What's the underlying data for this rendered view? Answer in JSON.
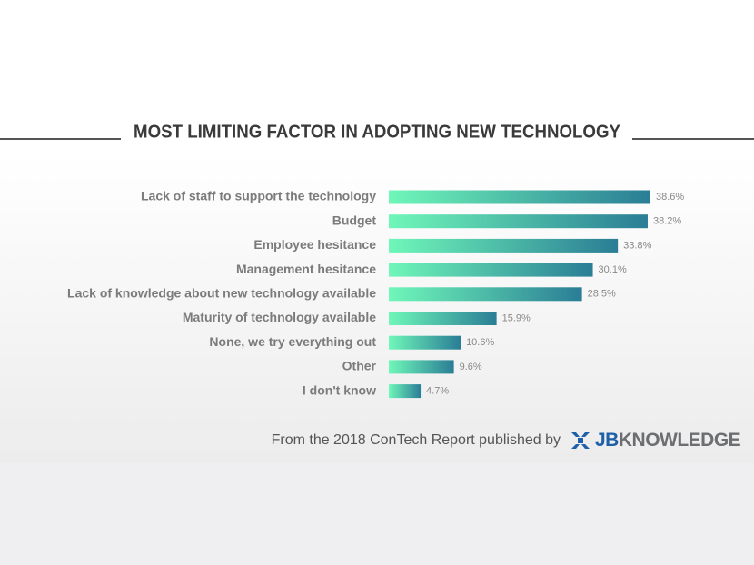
{
  "chart_data": {
    "type": "bar",
    "orientation": "horizontal",
    "title": "MOST LIMITING FACTOR IN ADOPTING NEW TECHNOLOGY",
    "categories": [
      "Lack of staff to support the technology",
      "Budget",
      "Employee hesitance",
      "Management hesitance",
      "Lack of knowledge about new technology available",
      "Maturity of technology available",
      "None, we try everything out",
      "Other",
      "I don't know"
    ],
    "values": [
      38.6,
      38.2,
      33.8,
      30.1,
      28.5,
      15.9,
      10.6,
      9.6,
      4.7
    ],
    "value_labels": [
      "38.6%",
      "38.2%",
      "33.8%",
      "30.1%",
      "28.5%",
      "15.9%",
      "10.6%",
      "9.6%",
      "4.7%"
    ],
    "colors": [
      "#6ff7b9",
      "#2a7d95"
    ],
    "source": "From the 2018 ConTech Report published by",
    "logo": {
      "first": "JB",
      "rest": "KNOWLEDGE"
    }
  }
}
